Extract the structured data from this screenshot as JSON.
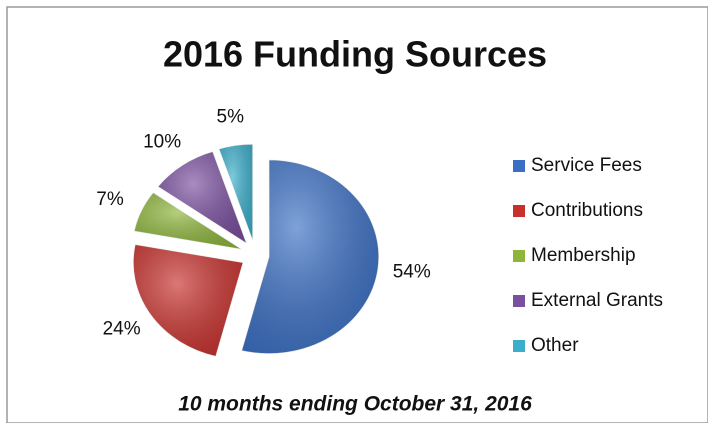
{
  "chart_data": {
    "type": "pie",
    "title": "2016 Funding Sources",
    "subtitle": "10 months ending October 31, 2016",
    "categories": [
      "Service Fees",
      "Contributions",
      "Membership",
      "External Grants",
      "Other"
    ],
    "values": [
      54,
      24,
      7,
      10,
      5
    ],
    "value_labels": [
      "54%",
      "24%",
      "7%",
      "10%",
      "5%"
    ],
    "colors": [
      "#3a6fc4",
      "#c8302c",
      "#8db53a",
      "#7a4f9f",
      "#3aaecb"
    ],
    "legend": "right"
  }
}
